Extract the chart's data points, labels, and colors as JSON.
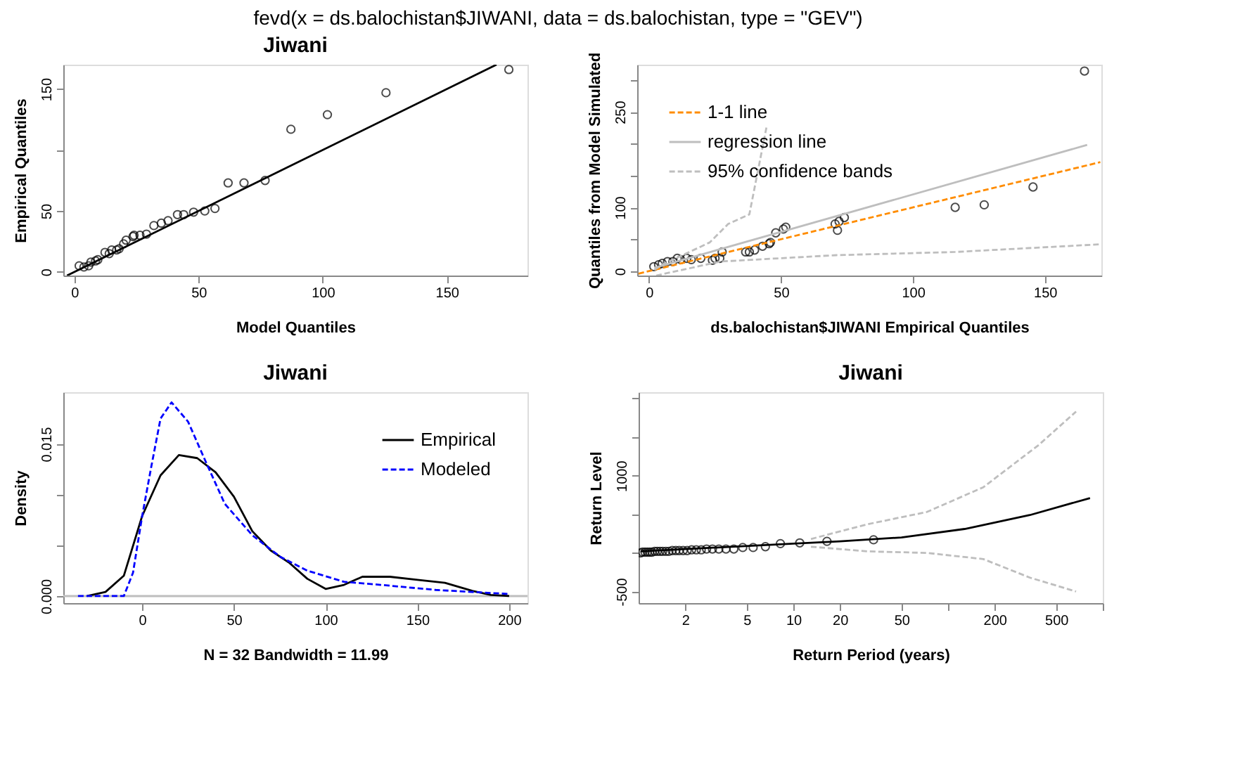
{
  "chart_data": [
    {
      "type": "scatter",
      "title": "Jiwani",
      "xlabel": "Model Quantiles",
      "ylabel": "Empirical Quantiles",
      "annotations": [
        "fevd(x = ds.balochistan$JIWANI, data = ds.balochistan, type = \"GEV\")"
      ],
      "xlim": [
        -4.5,
        182.5
      ],
      "ylim": [
        -3,
        170
      ],
      "xticks": [
        0,
        50,
        100,
        150
      ],
      "yticks": [
        0,
        50,
        {
          "value": 100,
          "label": null
        },
        150
      ],
      "series": [
        {
          "type": "scatter",
          "marker": "circle",
          "color": "#000000",
          "x": [
            1.9,
            3.8,
            5.7,
            6.6,
            8.5,
            9.4,
            12.3,
            14,
            15,
            17,
            18,
            19.8,
            20.8,
            23.6,
            24,
            26.4,
            29,
            32,
            35,
            37.7,
            41.5,
            44,
            48,
            52.5,
            56.6,
            61.9,
            68.3,
            76.8,
            87.2,
            101.9,
            125.5,
            175
          ],
          "values": [
            5,
            4,
            5,
            8,
            9,
            10,
            16,
            15,
            18,
            18,
            19,
            23,
            26,
            29,
            30,
            30,
            31,
            38,
            40,
            42,
            47,
            47,
            49,
            50,
            52,
            73,
            73,
            75,
            117,
            129,
            147,
            166
          ]
        },
        {
          "type": "line",
          "color": "#000000",
          "line_style": "solid",
          "x": [
            -3,
            170
          ],
          "values": [
            -3,
            170
          ]
        }
      ]
    },
    {
      "type": "scatter",
      "xlabel": "ds.balochistan$JIWANI Empirical Quantiles",
      "ylabel": "Quantiles from Model Simulated",
      "xlim": [
        -4.5,
        171.4
      ],
      "ylim": [
        -7,
        324
      ],
      "xticks": [
        0,
        50,
        100,
        150
      ],
      "yticks": [
        0,
        {
          "value": 50,
          "label": null
        },
        100,
        {
          "value": 150,
          "label": null
        },
        {
          "value": 200,
          "label": null
        },
        250,
        {
          "value": 300,
          "label": null
        }
      ],
      "legend": "top left",
      "series": [
        {
          "type": "scatter",
          "marker": "circle",
          "color": "#000000",
          "x": [
            1.8,
            3.6,
            5,
            7,
            9,
            10.7,
            12,
            14.3,
            16,
            19.6,
            24,
            25,
            26.8,
            27.7,
            36.6,
            38,
            40,
            43,
            45.5,
            46,
            48,
            50.9,
            51.8,
            70.5,
            71.4,
            72,
            74,
            116,
            127,
            145.5,
            165
          ],
          "values": [
            7,
            10,
            12,
            15,
            15,
            20,
            18,
            20,
            18,
            20,
            17,
            20,
            20,
            30,
            30,
            30,
            33,
            39,
            43,
            45,
            60,
            66,
            69,
            74,
            64,
            78,
            84,
            100,
            104,
            132,
            314
          ]
        },
        {
          "type": "line",
          "name": "1-1 line",
          "color": "#ff8c00",
          "line_style": "dashed",
          "x": [
            -4,
            171
          ],
          "values": [
            -4,
            171
          ]
        },
        {
          "type": "line",
          "name": "regression line",
          "color": "#bebebe",
          "line_style": "solid",
          "x": [
            2,
            166
          ],
          "values": [
            5,
            198
          ]
        },
        {
          "type": "line",
          "name": "95% confidence bands",
          "color": "#bebebe",
          "line_style": "dashed",
          "x": [
            2,
            5,
            23,
            30,
            38,
            44.6
          ],
          "values": [
            2,
            10,
            45,
            74,
            89,
            228
          ]
        },
        {
          "type": "line",
          "color": "#bebebe",
          "line_style": "dashed",
          "x": [
            2.7,
            27,
            71,
            116,
            171
          ],
          "values": [
            -7,
            15,
            25,
            30,
            42
          ]
        }
      ]
    },
    {
      "type": "line",
      "title": "Jiwani",
      "xlabel": "N = 32   Bandwidth = 11.99",
      "ylabel": "Density",
      "xlim": [
        -43,
        210
      ],
      "ylim": [
        -0.0007,
        0.0201
      ],
      "xticks": [
        0,
        50,
        100,
        150,
        200
      ],
      "yticks": [
        {
          "value": 0,
          "label": "0.000"
        },
        {
          "value": 0.005,
          "label": null
        },
        {
          "value": 0.01,
          "label": null
        },
        {
          "value": 0.015,
          "label": "0.015"
        }
      ],
      "legend": "top right",
      "ref_lines": [
        {
          "axis": "y",
          "value": 0,
          "color": "#bebebe"
        }
      ],
      "series": [
        {
          "name": "Empirical",
          "color": "#000000",
          "line_style": "solid",
          "x": [
            -30,
            -20,
            -10,
            0,
            10,
            20,
            30,
            40,
            50,
            60,
            70,
            80,
            90,
            100,
            110,
            120,
            135,
            150,
            165,
            180,
            190,
            200
          ],
          "values": [
            0,
            0.0004,
            0.002,
            0.0079,
            0.0119,
            0.0139,
            0.0136,
            0.0122,
            0.0098,
            0.0064,
            0.0045,
            0.0033,
            0.0017,
            0.0007,
            0.0011,
            0.0019,
            0.0019,
            0.0016,
            0.0013,
            0.0005,
            0.0001,
            0
          ]
        },
        {
          "name": "Modeled",
          "color": "#0000ff",
          "line_style": "dashed",
          "x": [
            -35,
            -10,
            -5,
            0,
            5,
            10,
            16,
            25,
            35,
            45,
            60,
            75,
            90,
            110,
            130,
            160,
            200
          ],
          "values": [
            0,
            0,
            0.0023,
            0.0079,
            0.0128,
            0.0175,
            0.0191,
            0.0172,
            0.0131,
            0.0091,
            0.006,
            0.0039,
            0.0025,
            0.0014,
            0.0011,
            0.0006,
            0.0002
          ]
        }
      ]
    },
    {
      "type": "line",
      "title": "Jiwani",
      "xlabel": "Return Period (years)",
      "ylabel": "Return Level",
      "log": "x",
      "xlim": [
        1,
        1000
      ],
      "ylim": [
        -650,
        2080
      ],
      "xticks": [
        2,
        5,
        10,
        20,
        50,
        {
          "value": 100,
          "label": null
        },
        200,
        500,
        {
          "value": 1000,
          "label": null
        }
      ],
      "yticks": [
        -500,
        {
          "value": 0,
          "label": null
        },
        {
          "value": 500,
          "label": null
        },
        1000,
        {
          "value": 1500,
          "label": null
        },
        {
          "value": 2000,
          "label": null
        }
      ],
      "series": [
        {
          "type": "scatter",
          "marker": "circle",
          "color": "#000000",
          "x": [
            33,
            16.5,
            11,
            8.25,
            6.6,
            5.5,
            4.71,
            4.125,
            3.67,
            3.3,
            3,
            2.75,
            2.54,
            2.36,
            2.2,
            2.06,
            1.94,
            1.83,
            1.74,
            1.65,
            1.57,
            1.5,
            1.43,
            1.375,
            1.32,
            1.27,
            1.22,
            1.18,
            1.14,
            1.1,
            1.06,
            1.03
          ],
          "values": [
            170,
            150,
            130,
            120,
            80,
            70,
            70,
            50,
            50,
            50,
            50,
            50,
            40,
            40,
            40,
            30,
            30,
            30,
            30,
            30,
            20,
            20,
            20,
            20,
            20,
            20,
            10,
            10,
            10,
            10,
            10,
            0
          ]
        },
        {
          "type": "line",
          "color": "#000000",
          "line_style": "solid",
          "x": [
            1.03,
            10,
            20,
            50,
            128,
            338,
            827
          ],
          "values": [
            20,
            120,
            150,
            200,
            310,
            490,
            710
          ]
        },
        {
          "type": "line",
          "color": "#bebebe",
          "line_style": "dashed",
          "x": [
            13,
            30,
            73,
            169,
            387,
            672
          ],
          "values": [
            180,
            370,
            530,
            850,
            1400,
            1830
          ]
        },
        {
          "type": "line",
          "color": "#bebebe",
          "line_style": "dashed",
          "x": [
            13,
            30,
            73,
            169,
            338,
            672
          ],
          "values": [
            80,
            20,
            0,
            -80,
            -320,
            -500
          ]
        }
      ]
    }
  ]
}
